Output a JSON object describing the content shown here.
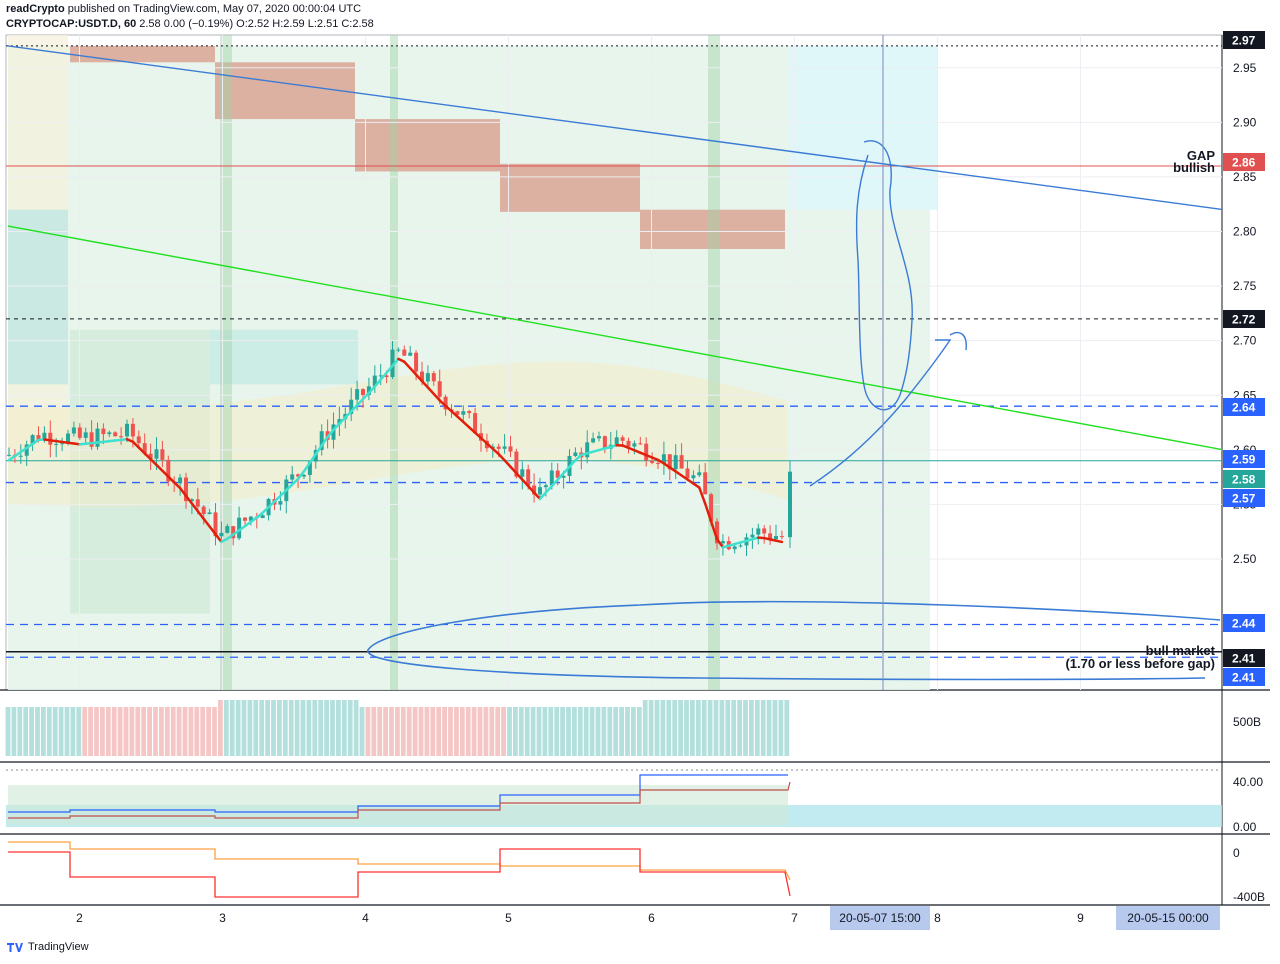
{
  "header": {
    "author": "readCrypto",
    "published": " published on TradingView.com, May 07, 2020 00:00:04 UTC",
    "symbol": "CRYPTOCAP:USDT.D, 60",
    "ohlc": " 2.58 0.00 (−0.19%) O:2.52 H:2.59 L:2.51 C:2.58"
  },
  "footer": {
    "brand": "TradingView"
  },
  "colors": {
    "up": "#26a69a",
    "down": "#ef5350",
    "dash_blue": "#2962ff",
    "trend_blue": "#3a7bd5",
    "trend_green": "#1ee01e",
    "ma_red": "#e0200a",
    "ma_teal": "#40e0d0",
    "gap_red": "#e05050",
    "black": "#131722"
  },
  "annotations": {
    "gap_line1": "GAP",
    "gap_line2": "bullish",
    "bull_line1": "bull market",
    "bull_line2": "(1.70 or less before gap)"
  },
  "chart_data": [
    {
      "type": "candlestick",
      "symbol": "CRYPTOCAP:USDT.D",
      "interval": "60",
      "x_labels": [
        "2",
        "3",
        "4",
        "5",
        "6",
        "7",
        "8",
        "9"
      ],
      "y_ticks": [
        2.5,
        2.55,
        2.6,
        2.65,
        2.7,
        2.75,
        2.8,
        2.85,
        2.9,
        2.95
      ],
      "ylim": [
        2.38,
        2.98
      ],
      "price_badges": [
        {
          "value": "2.97",
          "style": "black"
        },
        {
          "value": "2.86",
          "style": "red"
        },
        {
          "value": "2.72",
          "style": "black"
        },
        {
          "value": "2.64",
          "style": "blue"
        },
        {
          "value": "2.59",
          "style": "blue"
        },
        {
          "value": "2.58",
          "style": "teal"
        },
        {
          "value": "2.57",
          "style": "blue"
        },
        {
          "value": "2.44",
          "style": "blue"
        },
        {
          "value": "2.41",
          "style": "black"
        },
        {
          "value": "2.41",
          "style": "blue"
        }
      ],
      "horizontal_levels": [
        {
          "price": 2.97,
          "style": "dotted-black"
        },
        {
          "price": 2.86,
          "style": "solid-red"
        },
        {
          "price": 2.72,
          "style": "dashed-black"
        },
        {
          "price": 2.64,
          "style": "dashed-blue"
        },
        {
          "price": 2.59,
          "style": "solid-teal"
        },
        {
          "price": 2.57,
          "style": "dashed-blue"
        },
        {
          "price": 2.44,
          "style": "dashed-blue"
        },
        {
          "price": 2.415,
          "style": "solid-black"
        },
        {
          "price": 2.41,
          "style": "dashed-blue"
        }
      ],
      "trendlines": [
        {
          "color": "blue",
          "from": {
            "day": 1.5,
            "price": 2.97
          },
          "to": {
            "day": 10.0,
            "price": 2.82
          }
        },
        {
          "color": "green",
          "from": {
            "day": 1.5,
            "price": 2.805
          },
          "to": {
            "day": 10.0,
            "price": 2.6
          }
        }
      ],
      "crosshair_labels": [
        "20-05-07   15:00",
        "20-05-15   00:00"
      ],
      "last": {
        "open": 2.52,
        "high": 2.59,
        "low": 2.51,
        "close": 2.58
      }
    },
    {
      "type": "bar",
      "name": "volume",
      "y_ticks": [
        "500B"
      ]
    },
    {
      "type": "line",
      "name": "indicator-1",
      "y_ticks": [
        "40.00",
        "0.00"
      ]
    },
    {
      "type": "line",
      "name": "indicator-2",
      "y_ticks": [
        "0",
        "-400B"
      ]
    }
  ]
}
